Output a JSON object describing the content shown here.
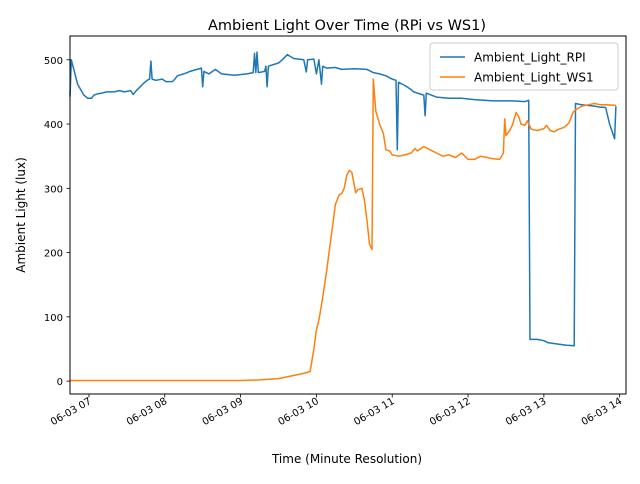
{
  "chart_data": {
    "type": "line",
    "title": "Ambient Light Over Time (RPi vs WS1)",
    "xlabel": "Time (Minute Resolution)",
    "ylabel": "Ambient Light (lux)",
    "xlim": [
      "06-03 06:45",
      "06-03 14:05"
    ],
    "ylim": [
      -20,
      537
    ],
    "x_ticks": [
      {
        "t": "06-03 07:00",
        "label": "06-03 07"
      },
      {
        "t": "06-03 08:00",
        "label": "06-03 08"
      },
      {
        "t": "06-03 09:00",
        "label": "06-03 09"
      },
      {
        "t": "06-03 10:00",
        "label": "06-03 10"
      },
      {
        "t": "06-03 11:00",
        "label": "06-03 11"
      },
      {
        "t": "06-03 12:00",
        "label": "06-03 12"
      },
      {
        "t": "06-03 13:00",
        "label": "06-03 13"
      },
      {
        "t": "06-03 14:00",
        "label": "06-03 14"
      }
    ],
    "y_ticks": [
      0,
      100,
      200,
      300,
      400,
      500
    ],
    "legend_position": "top-right",
    "grid": false,
    "series": [
      {
        "name": "Ambient_Light_RPI",
        "color": "#1f77b4",
        "points": [
          [
            "06-03 06:45",
            452
          ],
          [
            "06:45",
            443
          ],
          [
            "06:46",
            500
          ],
          [
            "06:48",
            485
          ],
          [
            "06:51",
            462
          ],
          [
            "06:56",
            445
          ],
          [
            "06:59",
            440
          ],
          [
            "07:02",
            440
          ],
          [
            "07:04",
            445
          ],
          [
            "07:07",
            447
          ],
          [
            "07:10",
            448
          ],
          [
            "07:14",
            450
          ],
          [
            "07:20",
            450
          ],
          [
            "07:24",
            452
          ],
          [
            "07:28",
            450
          ],
          [
            "07:33",
            452
          ],
          [
            "07:35",
            446
          ],
          [
            "07:37",
            451
          ],
          [
            "07:43",
            463
          ],
          [
            "07:46",
            468
          ],
          [
            "07:48",
            470
          ],
          [
            "07:49",
            498
          ],
          [
            "07:50",
            470
          ],
          [
            "07:53",
            468
          ],
          [
            "07:58",
            470
          ],
          [
            "08:01",
            466
          ],
          [
            "08:06",
            466
          ],
          [
            "08:08",
            470
          ],
          [
            "08:10",
            475
          ],
          [
            "08:15",
            478
          ],
          [
            "08:20",
            482
          ],
          [
            "08:29",
            487
          ],
          [
            "08:30",
            458
          ],
          [
            "08:31",
            482
          ],
          [
            "08:35",
            478
          ],
          [
            "08:40",
            485
          ],
          [
            "08:45",
            478
          ],
          [
            "08:55",
            476
          ],
          [
            "09:05",
            478
          ],
          [
            "09:10",
            480
          ],
          [
            "09:11",
            510
          ],
          [
            "09:12",
            480
          ],
          [
            "09:13",
            512
          ],
          [
            "09:14",
            480
          ],
          [
            "09:19",
            482
          ],
          [
            "09:20",
            490
          ],
          [
            "09:21",
            458
          ],
          [
            "09:22",
            490
          ],
          [
            "09:30",
            495
          ],
          [
            "09:33",
            500
          ],
          [
            "09:37",
            508
          ],
          [
            "09:42",
            502
          ],
          [
            "09:50",
            500
          ],
          [
            "09:52",
            481
          ],
          [
            "09:53",
            500
          ],
          [
            "09:58",
            501
          ],
          [
            "10:00",
            478
          ],
          [
            "10:02",
            500
          ],
          [
            "10:04",
            462
          ],
          [
            "10:05",
            490
          ],
          [
            "10:08",
            487
          ],
          [
            "10:15",
            488
          ],
          [
            "10:20",
            485
          ],
          [
            "10:30",
            486
          ],
          [
            "10:40",
            485
          ],
          [
            "10:45",
            480
          ],
          [
            "10:50",
            478
          ],
          [
            "10:55",
            475
          ],
          [
            "11:00",
            470
          ],
          [
            "11:03",
            468
          ],
          [
            "11:04",
            360
          ],
          [
            "11:05",
            465
          ],
          [
            "11:10",
            460
          ],
          [
            "11:14",
            455
          ],
          [
            "11:17",
            450
          ],
          [
            "11:25",
            445
          ],
          [
            "11:26",
            413
          ],
          [
            "11:27",
            448
          ],
          [
            "11:35",
            442
          ],
          [
            "11:45",
            440
          ],
          [
            "11:55",
            440
          ],
          [
            "12:05",
            438
          ],
          [
            "12:20",
            436
          ],
          [
            "12:35",
            436
          ],
          [
            "12:45",
            435
          ],
          [
            "12:48",
            437
          ],
          [
            "12:49",
            65
          ],
          [
            "12:55",
            65
          ],
          [
            "13:00",
            63
          ],
          [
            "13:03",
            60
          ],
          [
            "13:10",
            58
          ],
          [
            "13:18",
            56
          ],
          [
            "13:24",
            55
          ],
          [
            "13:25",
            432
          ],
          [
            "13:30",
            430
          ],
          [
            "13:40",
            428
          ],
          [
            "13:45",
            426
          ],
          [
            "13:48",
            426
          ],
          [
            "13:49",
            425
          ],
          [
            "13:52",
            400
          ],
          [
            "13:56",
            377
          ],
          [
            "13:57",
            428
          ]
        ]
      },
      {
        "name": "Ambient_Light_WS1",
        "color": "#ff7f0e",
        "points": [
          [
            "06-03 06:45",
            1
          ],
          [
            "07:00",
            1
          ],
          [
            "08:00",
            1
          ],
          [
            "09:00",
            1
          ],
          [
            "09:15",
            2
          ],
          [
            "09:30",
            4
          ],
          [
            "09:40",
            8
          ],
          [
            "09:50",
            12
          ],
          [
            "09:55",
            15
          ],
          [
            "09:58",
            50
          ],
          [
            "10:00",
            80
          ],
          [
            "10:02",
            95
          ],
          [
            "10:05",
            130
          ],
          [
            "10:08",
            170
          ],
          [
            "10:12",
            230
          ],
          [
            "10:15",
            275
          ],
          [
            "10:18",
            290
          ],
          [
            "10:20",
            292
          ],
          [
            "10:22",
            300
          ],
          [
            "10:24",
            320
          ],
          [
            "10:26",
            328
          ],
          [
            "10:28",
            325
          ],
          [
            "10:30",
            305
          ],
          [
            "10:31",
            293
          ],
          [
            "10:33",
            298
          ],
          [
            "10:36",
            300
          ],
          [
            "10:38",
            282
          ],
          [
            "10:40",
            250
          ],
          [
            "10:42",
            213
          ],
          [
            "10:44",
            205
          ],
          [
            "10:45",
            470
          ],
          [
            "10:47",
            420
          ],
          [
            "10:50",
            400
          ],
          [
            "10:53",
            385
          ],
          [
            "10:55",
            360
          ],
          [
            "10:58",
            358
          ],
          [
            "11:00",
            352
          ],
          [
            "11:05",
            350
          ],
          [
            "11:10",
            352
          ],
          [
            "11:15",
            355
          ],
          [
            "11:18",
            362
          ],
          [
            "11:20",
            358
          ],
          [
            "11:25",
            365
          ],
          [
            "11:30",
            360
          ],
          [
            "11:35",
            355
          ],
          [
            "11:40",
            350
          ],
          [
            "11:45",
            352
          ],
          [
            "11:50",
            348
          ],
          [
            "11:55",
            355
          ],
          [
            "12:00",
            345
          ],
          [
            "12:05",
            345
          ],
          [
            "12:10",
            350
          ],
          [
            "12:15",
            348
          ],
          [
            "12:20",
            346
          ],
          [
            "12:25",
            345
          ],
          [
            "12:28",
            355
          ],
          [
            "12:29",
            408
          ],
          [
            "12:30",
            382
          ],
          [
            "12:33",
            390
          ],
          [
            "12:35",
            398
          ],
          [
            "12:38",
            418
          ],
          [
            "12:40",
            412
          ],
          [
            "12:42",
            400
          ],
          [
            "12:45",
            398
          ],
          [
            "12:47",
            405
          ],
          [
            "12:50",
            392
          ],
          [
            "12:55",
            390
          ],
          [
            "13:00",
            393
          ],
          [
            "13:02",
            398
          ],
          [
            "13:05",
            390
          ],
          [
            "13:08",
            388
          ],
          [
            "13:12",
            392
          ],
          [
            "13:16",
            395
          ],
          [
            "13:20",
            402
          ],
          [
            "13:23",
            418
          ],
          [
            "13:25",
            422
          ],
          [
            "13:30",
            428
          ],
          [
            "13:35",
            430
          ],
          [
            "13:40",
            432
          ],
          [
            "13:45",
            430
          ],
          [
            "13:50",
            430
          ],
          [
            "13:57",
            429
          ]
        ]
      }
    ]
  }
}
